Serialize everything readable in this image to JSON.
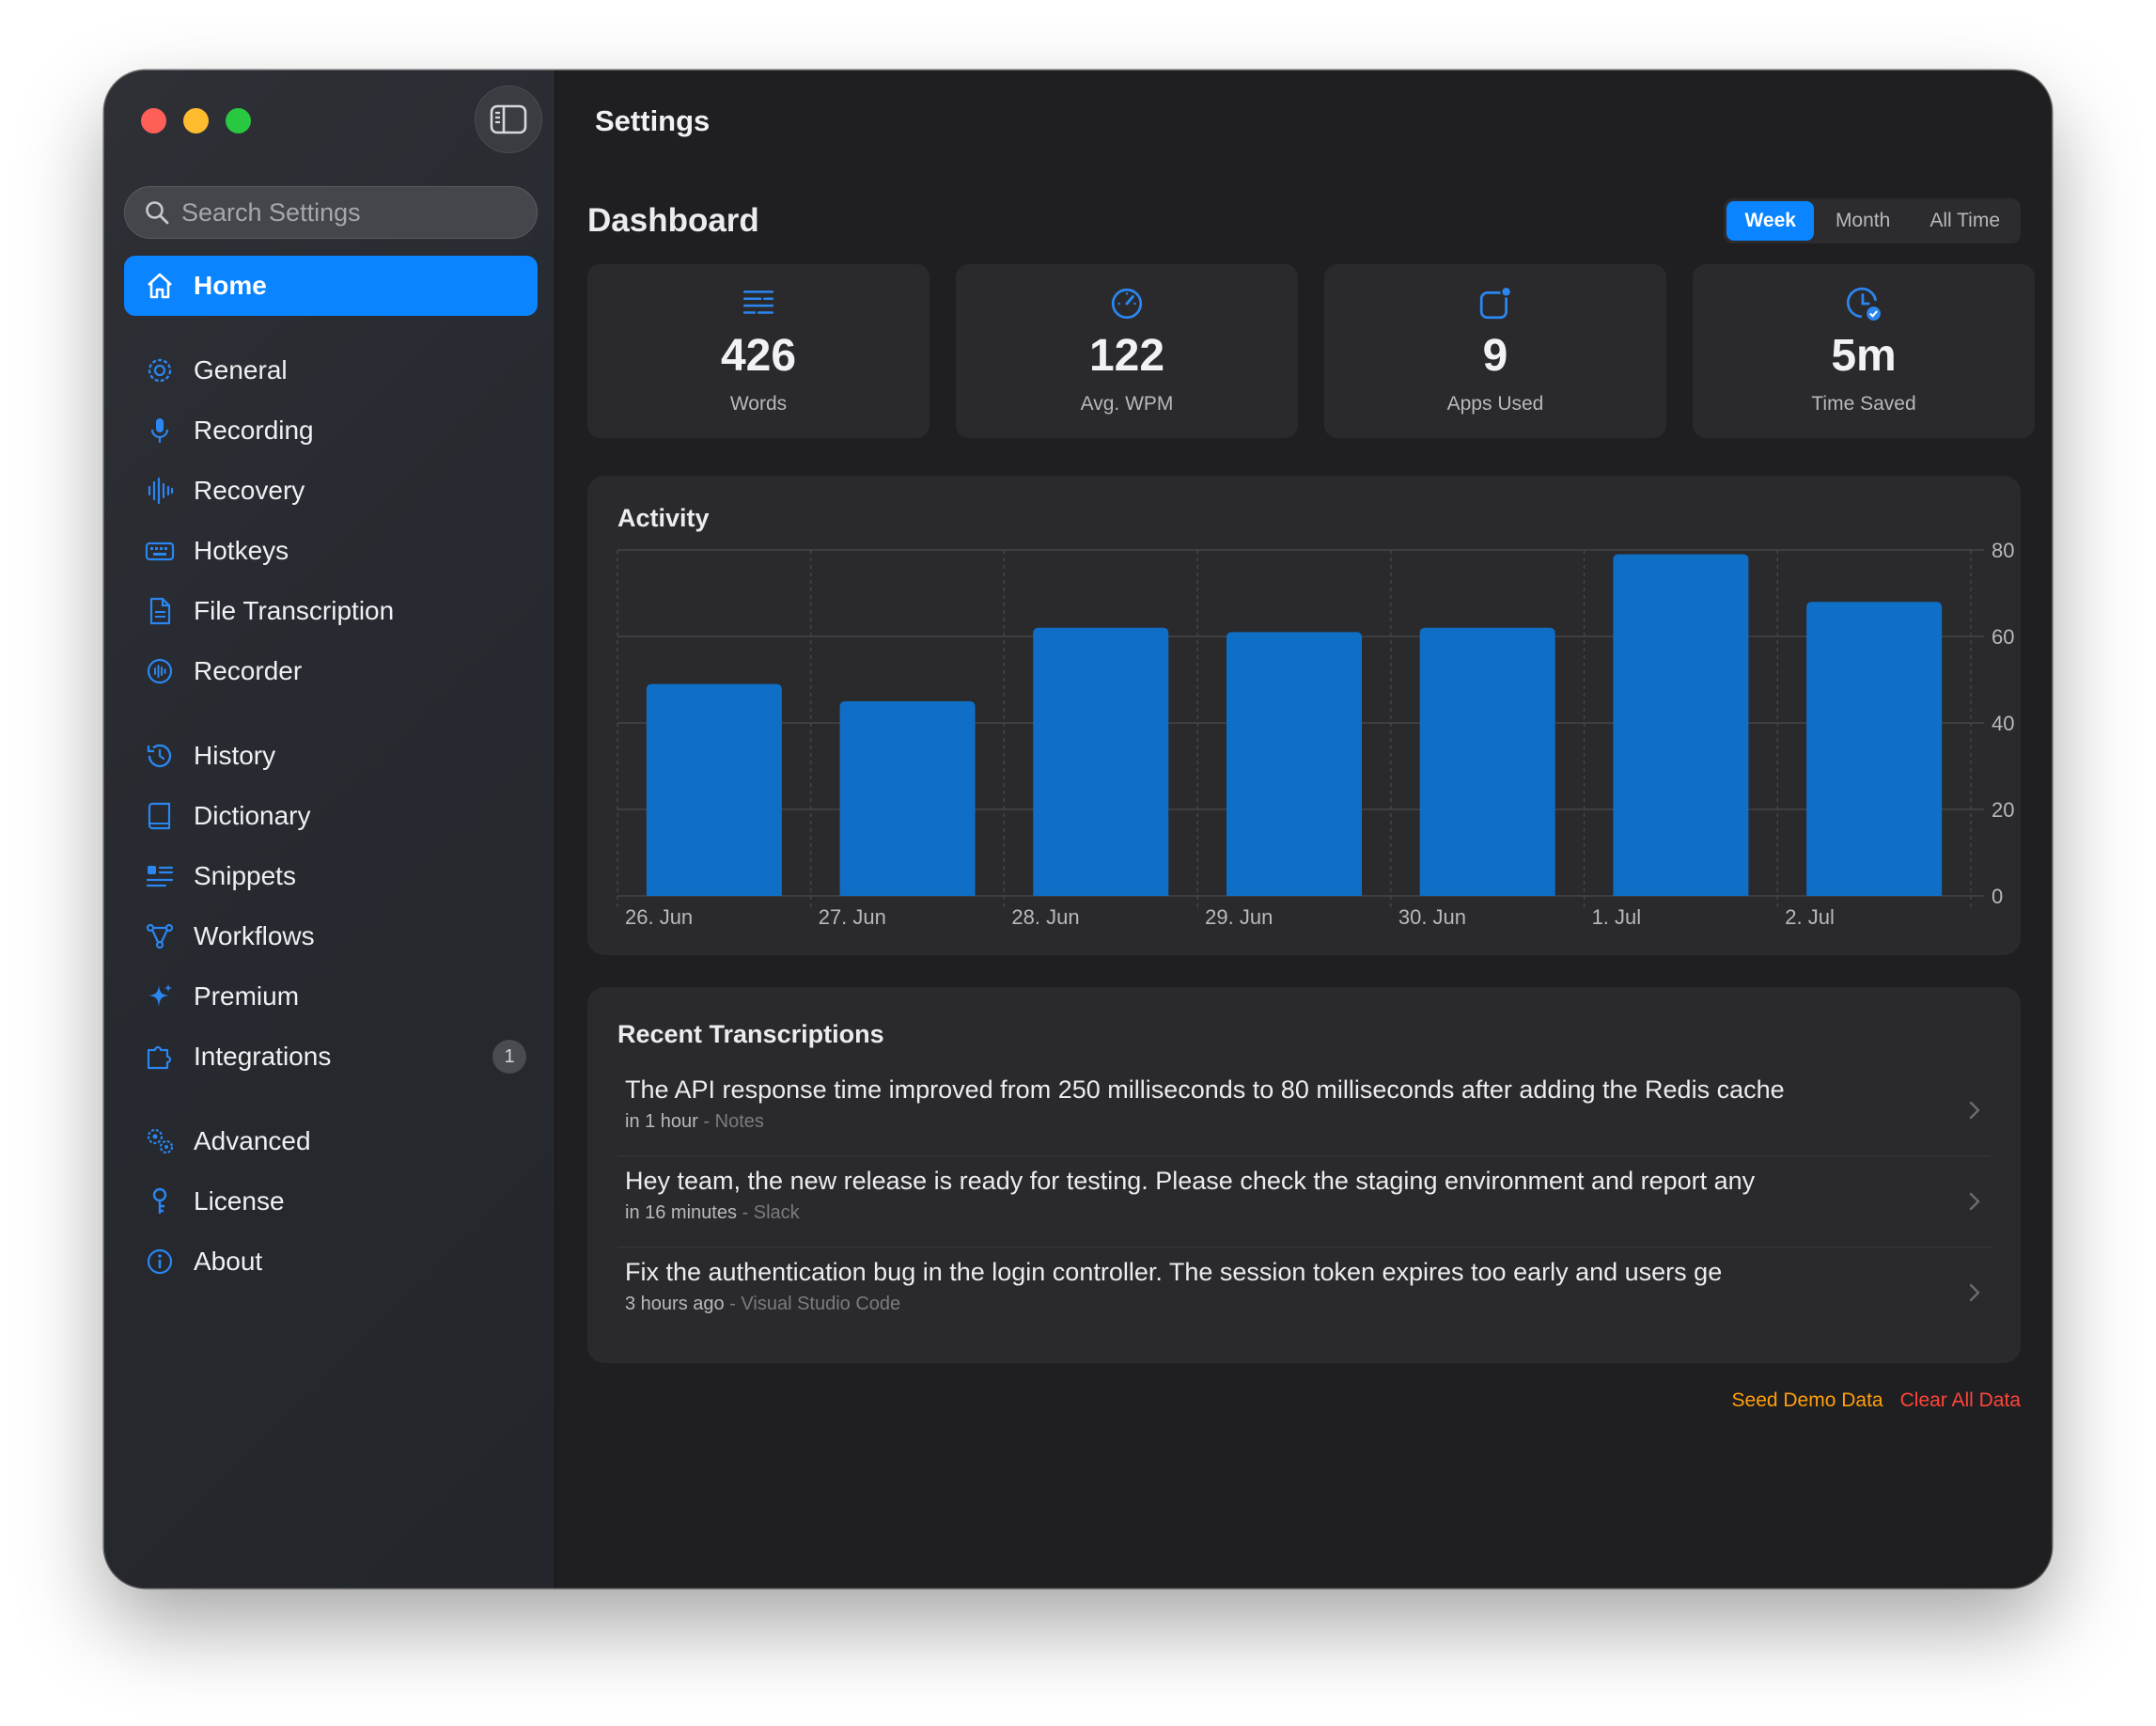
{
  "window": {
    "title": "Settings"
  },
  "search": {
    "placeholder": "Search Settings"
  },
  "sidebar": {
    "groups": [
      [
        {
          "label": "Home",
          "icon": "house-icon",
          "active": true
        }
      ],
      [
        {
          "label": "General",
          "icon": "gear-icon"
        },
        {
          "label": "Recording",
          "icon": "microphone-icon"
        },
        {
          "label": "Recovery",
          "icon": "waveform-icon"
        },
        {
          "label": "Hotkeys",
          "icon": "keyboard-icon"
        },
        {
          "label": "File Transcription",
          "icon": "document-icon"
        },
        {
          "label": "Recorder",
          "icon": "record-circle-icon"
        }
      ],
      [
        {
          "label": "History",
          "icon": "clock-history-icon"
        },
        {
          "label": "Dictionary",
          "icon": "book-icon"
        },
        {
          "label": "Snippets",
          "icon": "snippets-icon"
        },
        {
          "label": "Workflows",
          "icon": "flow-icon"
        },
        {
          "label": "Premium",
          "icon": "sparkles-icon"
        },
        {
          "label": "Integrations",
          "icon": "puzzle-icon",
          "badge": "1"
        }
      ],
      [
        {
          "label": "Advanced",
          "icon": "gears-icon"
        },
        {
          "label": "License",
          "icon": "key-icon"
        },
        {
          "label": "About",
          "icon": "info-icon"
        }
      ]
    ]
  },
  "dashboard": {
    "title": "Dashboard",
    "ranges": [
      "Week",
      "Month",
      "All Time"
    ],
    "selected_range": "Week",
    "stats": [
      {
        "value": "426",
        "label": "Words",
        "icon": "text-lines-icon"
      },
      {
        "value": "122",
        "label": "Avg. WPM",
        "icon": "speedometer-icon"
      },
      {
        "value": "9",
        "label": "Apps Used",
        "icon": "app-badge-icon"
      },
      {
        "value": "5m",
        "label": "Time Saved",
        "icon": "clock-check-icon"
      }
    ]
  },
  "activity": {
    "title": "Activity"
  },
  "chart_data": {
    "type": "bar",
    "categories": [
      "26. Jun",
      "27. Jun",
      "28. Jun",
      "29. Jun",
      "30. Jun",
      "1. Jul",
      "2. Jul"
    ],
    "values": [
      49,
      45,
      62,
      61,
      62,
      79,
      68
    ],
    "ylim": [
      0,
      80
    ],
    "yticks": [
      0,
      20,
      40,
      60,
      80
    ],
    "y_axis_side": "right",
    "grid": true,
    "bar_color": "#0f6fc6"
  },
  "recent": {
    "title": "Recent Transcriptions",
    "items": [
      {
        "text": "The API response time improved from 250 milliseconds to 80 milliseconds after adding the Redis cache",
        "time": "in 1 hour",
        "app": "- Notes"
      },
      {
        "text": "Hey team, the new release is ready for testing. Please check the staging environment and report any",
        "time": "in 16 minutes",
        "app": "- Slack"
      },
      {
        "text": "Fix the authentication bug in the login controller. The session token expires too early and users ge",
        "time": "3 hours ago",
        "app": "- Visual Studio Code"
      }
    ]
  },
  "footer": {
    "seed": "Seed Demo Data",
    "clear": "Clear All Data"
  },
  "colors": {
    "accent": "#0a84ff",
    "seed": "#ff9f0a",
    "clear": "#ff453a"
  }
}
